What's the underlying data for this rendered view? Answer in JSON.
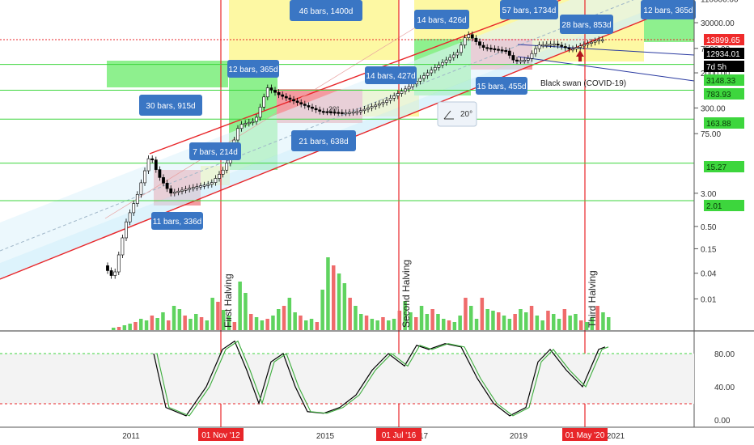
{
  "chart_data": {
    "type": "candlestick",
    "scale": "log",
    "price_axis": {
      "ticks": [
        "110000.00",
        "30000.00",
        "7500.00",
        "2000.00",
        "300.00",
        "75.00",
        "3.00",
        "0.50",
        "0.15",
        "0.04",
        "0.01"
      ],
      "labels": [
        {
          "text": "13899.65",
          "color": "#ef2b2b"
        },
        {
          "text": "12934.01",
          "color": "#000000"
        },
        {
          "text": "7d 5h",
          "color": "#000000"
        },
        {
          "text": "3148.33",
          "color": "#3dd63d"
        },
        {
          "text": "783.93",
          "color": "#3dd63d"
        },
        {
          "text": "163.88",
          "color": "#3dd63d"
        },
        {
          "text": "15.27",
          "color": "#3dd63d"
        },
        {
          "text": "2.01",
          "color": "#3dd63d"
        }
      ]
    },
    "horizontal_levels": [
      3148.33,
      783.93,
      163.88,
      15.27,
      2.01
    ],
    "x_axis": {
      "ticks": [
        "2011",
        "2015",
        "2017",
        "2019",
        "2021"
      ],
      "event_labels": [
        "01 Nov '12",
        "01 Jul '16",
        "01 May '20"
      ]
    },
    "halvings": [
      "First Halving",
      "Second Halving",
      "Third Halving"
    ],
    "range_labels": [
      "46 bars, 1400d",
      "14 bars, 426d",
      "57 bars, 1734d",
      "12 bars, 365d",
      "28 bars, 853d",
      "12 bars, 365d",
      "14 bars, 427d",
      "15 bars, 455d",
      "30 bars, 915d",
      "21 bars, 638d",
      "7 bars, 214d",
      "11 bars, 336d"
    ],
    "annotations": [
      "Black swan (COVID-19)",
      "20°",
      "20°"
    ],
    "stoch_axis": {
      "ticks": [
        "80.00",
        "40.00",
        "0.00"
      ],
      "upper": 80,
      "lower": 20
    }
  }
}
